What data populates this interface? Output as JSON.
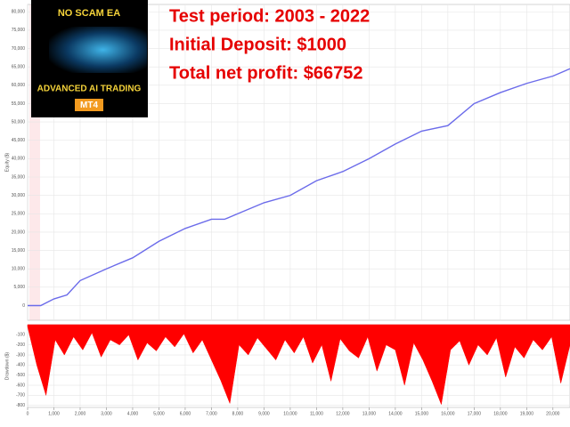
{
  "overlay": {
    "brand": "NO SCAM EA",
    "product": "ADVANCED AI TRADING",
    "platform": "MT4",
    "lines": [
      "Test period: 2003 - 2022",
      "Initial Deposit: $1000",
      "Total net profit: $66752"
    ]
  },
  "chart_data": [
    {
      "type": "line",
      "y_label": "Equity ($)",
      "color": "#6b6bea",
      "x": [
        0,
        500,
        1000,
        1500,
        2000,
        3000,
        4000,
        5000,
        6000,
        7000,
        7500,
        8000,
        9000,
        10000,
        11000,
        12000,
        13000,
        14000,
        15000,
        16000,
        17000,
        18000,
        19000,
        20000,
        20650
      ],
      "values": [
        0,
        0,
        1800,
        2900,
        6800,
        10000,
        13000,
        17500,
        21000,
        23500,
        23500,
        25000,
        28000,
        30000,
        34000,
        36500,
        40000,
        44000,
        47500,
        49000,
        55000,
        58000,
        60500,
        62500,
        64500
      ],
      "xlim": [
        0,
        20650
      ],
      "ylim": [
        -4000,
        82000
      ],
      "yticks": [
        0,
        {
          "value": 5000,
          "label": "5,000"
        },
        {
          "value": 10000,
          "label": "10,000"
        },
        {
          "value": 15000,
          "label": "15,000"
        },
        {
          "value": 20000,
          "label": "20,000"
        },
        {
          "value": 25000,
          "label": "25,000"
        },
        {
          "value": 30000,
          "label": "30,000"
        },
        {
          "value": 35000,
          "label": "35,000"
        },
        {
          "value": 40000,
          "label": "40,000"
        },
        {
          "value": 45000,
          "label": "45,000"
        },
        {
          "value": 50000,
          "label": "50,000"
        },
        {
          "value": 55000,
          "label": "55,000"
        },
        {
          "value": 60000,
          "label": "60,000"
        },
        {
          "value": 65000,
          "label": "65,000"
        },
        {
          "value": 70000,
          "label": "70,000"
        },
        {
          "value": 75000,
          "label": "75,000"
        },
        {
          "value": 80000,
          "label": "80,000"
        }
      ],
      "grid": true
    },
    {
      "type": "area",
      "y_label": "Drawdown ($)",
      "color": "#ff0000",
      "x": [
        0,
        350,
        700,
        1050,
        1400,
        1750,
        2100,
        2450,
        2800,
        3150,
        3500,
        3850,
        4200,
        4550,
        4900,
        5250,
        5600,
        5950,
        6300,
        6650,
        7000,
        7350,
        7700,
        8050,
        8400,
        8750,
        9100,
        9450,
        9800,
        10150,
        10500,
        10850,
        11200,
        11550,
        11900,
        12250,
        12600,
        12950,
        13300,
        13650,
        14000,
        14350,
        14700,
        15050,
        15400,
        15750,
        16100,
        16450,
        16800,
        17150,
        17500,
        17850,
        18200,
        18550,
        18900,
        19250,
        19600,
        19950,
        20300,
        20650
      ],
      "values": [
        -20,
        -400,
        -700,
        -150,
        -300,
        -120,
        -250,
        -80,
        -320,
        -150,
        -200,
        -100,
        -350,
        -180,
        -260,
        -120,
        -220,
        -90,
        -280,
        -150,
        -350,
        -550,
        -780,
        -200,
        -300,
        -130,
        -240,
        -350,
        -150,
        -280,
        -120,
        -380,
        -200,
        -560,
        -140,
        -260,
        -330,
        -120,
        -460,
        -200,
        -250,
        -600,
        -180,
        -350,
        -560,
        -790,
        -250,
        -160,
        -400,
        -200,
        -300,
        -130,
        -520,
        -220,
        -330,
        -150,
        -250,
        -120,
        -580,
        -200
      ],
      "xlim": [
        0,
        20650
      ],
      "ylim": [
        -820,
        0
      ],
      "yticks": [
        -100,
        -200,
        -300,
        -400,
        -500,
        -600,
        -700,
        -800
      ],
      "xticks": [
        0,
        {
          "value": 1000,
          "label": "1,000"
        },
        {
          "value": 2000,
          "label": "2,000"
        },
        {
          "value": 3000,
          "label": "3,000"
        },
        {
          "value": 4000,
          "label": "4,000"
        },
        {
          "value": 5000,
          "label": "5,000"
        },
        {
          "value": 6000,
          "label": "6,000"
        },
        {
          "value": 7000,
          "label": "7,000"
        },
        {
          "value": 8000,
          "label": "8,000"
        },
        {
          "value": 9000,
          "label": "9,000"
        },
        {
          "value": 10000,
          "label": "10,000"
        },
        {
          "value": 11000,
          "label": "11,000"
        },
        {
          "value": 12000,
          "label": "12,000"
        },
        {
          "value": 13000,
          "label": "13,000"
        },
        {
          "value": 14000,
          "label": "14,000"
        },
        {
          "value": 15000,
          "label": "15,000"
        },
        {
          "value": 16000,
          "label": "16,000"
        },
        {
          "value": 17000,
          "label": "17,000"
        },
        {
          "value": 18000,
          "label": "18,000"
        },
        {
          "value": 19000,
          "label": "19,000"
        },
        {
          "value": 20000,
          "label": "20,000"
        }
      ],
      "grid": true
    }
  ]
}
